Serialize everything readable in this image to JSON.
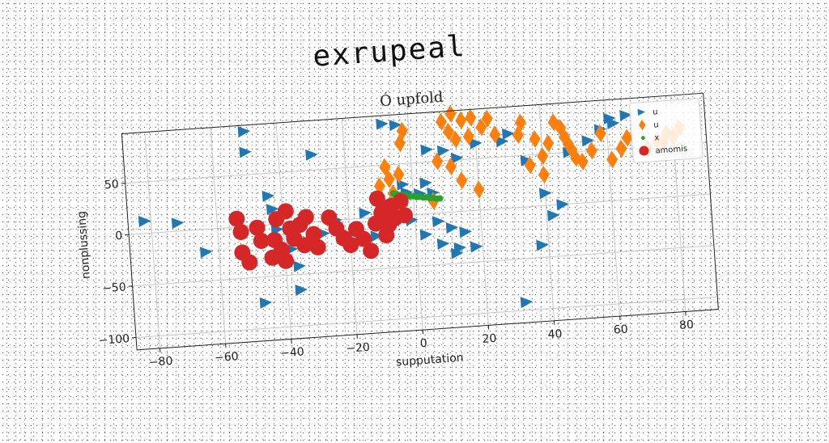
{
  "header": {
    "title": "exrupeal"
  },
  "chart_data": {
    "type": "scatter",
    "title": "Ó upfold",
    "xlabel": "supputation",
    "ylabel": "nonplussing",
    "xlim": [
      -87,
      90
    ],
    "ylim": [
      -112,
      98
    ],
    "xticks": [
      -80,
      -60,
      -40,
      -20,
      0,
      20,
      40,
      60,
      80
    ],
    "yticks": [
      50,
      0,
      -50,
      -100
    ],
    "grid": true,
    "legend_position": "top-right",
    "series": [
      {
        "name": "u",
        "marker": "triangle-right",
        "color": "#1f77b4",
        "points": [
          [
            -82,
            12
          ],
          [
            -72,
            8
          ],
          [
            -64,
            -22
          ],
          [
            -50,
            92
          ],
          [
            -50,
            72
          ],
          [
            -47,
            -75
          ],
          [
            -44,
            28
          ],
          [
            -43,
            15
          ],
          [
            -42,
            -5
          ],
          [
            -38,
            -25
          ],
          [
            -36,
            -42
          ],
          [
            -36,
            -65
          ],
          [
            -30,
            65
          ],
          [
            -28,
            -12
          ],
          [
            -24,
            0
          ],
          [
            -18,
            -12
          ],
          [
            -15,
            5
          ],
          [
            -12,
            -18
          ],
          [
            -10,
            10
          ],
          [
            -8,
            90
          ],
          [
            -4,
            88
          ],
          [
            -3,
            30
          ],
          [
            -2,
            22
          ],
          [
            -1,
            -5
          ],
          [
            2,
            20
          ],
          [
            3,
            -20
          ],
          [
            4,
            30
          ],
          [
            5,
            62
          ],
          [
            6,
            20
          ],
          [
            7,
            -8
          ],
          [
            8,
            -30
          ],
          [
            10,
            60
          ],
          [
            11,
            -15
          ],
          [
            12,
            -40
          ],
          [
            13,
            -35
          ],
          [
            14,
            52
          ],
          [
            15,
            -20
          ],
          [
            18,
            -35
          ],
          [
            20,
            65
          ],
          [
            28,
            65
          ],
          [
            30,
            72
          ],
          [
            32,
            -92
          ],
          [
            35,
            45
          ],
          [
            38,
            -38
          ],
          [
            40,
            12
          ],
          [
            42,
            -10
          ],
          [
            45,
            0
          ],
          [
            48,
            50
          ],
          [
            54,
            60
          ],
          [
            58,
            70
          ],
          [
            61,
            80
          ],
          [
            62,
            75
          ],
          [
            66,
            82
          ]
        ]
      },
      {
        "name": "u",
        "marker": "diamond",
        "color": "#ff7f0e",
        "points": [
          [
            -8,
            48
          ],
          [
            -7,
            36
          ],
          [
            -6,
            22
          ],
          [
            -5,
            8
          ],
          [
            -4,
            40
          ],
          [
            -3,
            70
          ],
          [
            -2,
            82
          ],
          [
            10,
            88
          ],
          [
            12,
            78
          ],
          [
            13,
            95
          ],
          [
            14,
            70
          ],
          [
            16,
            88
          ],
          [
            18,
            72
          ],
          [
            19,
            90
          ],
          [
            22,
            80
          ],
          [
            24,
            88
          ],
          [
            26,
            72
          ],
          [
            33,
            70
          ],
          [
            34,
            82
          ],
          [
            36,
            40
          ],
          [
            38,
            65
          ],
          [
            40,
            48
          ],
          [
            42,
            60
          ],
          [
            44,
            80
          ],
          [
            46,
            74
          ],
          [
            47,
            65
          ],
          [
            48,
            58
          ],
          [
            49,
            52
          ],
          [
            50,
            44
          ],
          [
            52,
            40
          ],
          [
            55,
            50
          ],
          [
            58,
            66
          ],
          [
            61,
            40
          ],
          [
            64,
            50
          ],
          [
            66,
            60
          ],
          [
            72,
            48
          ],
          [
            75,
            55
          ],
          [
            77,
            54
          ],
          [
            78,
            62
          ],
          [
            80,
            58
          ],
          [
            82,
            66
          ],
          [
            15,
            30
          ],
          [
            12,
            44
          ],
          [
            20,
            20
          ],
          [
            6,
            12
          ],
          [
            -10,
            30
          ],
          [
            8,
            50
          ],
          [
            40,
            30
          ]
        ]
      },
      {
        "name": "x",
        "marker": "circle-small",
        "color": "#2ca02c",
        "points": [
          [
            -6,
            22
          ],
          [
            -5,
            21
          ],
          [
            -4,
            20
          ],
          [
            -3,
            20
          ],
          [
            -2,
            19
          ],
          [
            -1,
            18
          ],
          [
            0,
            18
          ],
          [
            1,
            17
          ],
          [
            2,
            17
          ],
          [
            3,
            16
          ],
          [
            4,
            16
          ],
          [
            5,
            15
          ],
          [
            6,
            15
          ],
          [
            7,
            14
          ],
          [
            8,
            14
          ]
        ]
      },
      {
        "name": "amomis",
        "marker": "circle",
        "color": "#d62728",
        "points": [
          [
            -54,
            8
          ],
          [
            -53,
            -5
          ],
          [
            -53,
            -25
          ],
          [
            -51,
            -35
          ],
          [
            -48,
            -2
          ],
          [
            -47,
            -15
          ],
          [
            -44,
            -32
          ],
          [
            -43,
            -15
          ],
          [
            -42,
            5
          ],
          [
            -41,
            -25
          ],
          [
            -40,
            -36
          ],
          [
            -39,
            12
          ],
          [
            -38,
            -5
          ],
          [
            -37,
            -15
          ],
          [
            -35,
            -2
          ],
          [
            -34,
            -22
          ],
          [
            -33,
            5
          ],
          [
            -31,
            -12
          ],
          [
            -30,
            -25
          ],
          [
            -26,
            3
          ],
          [
            -24,
            -8
          ],
          [
            -22,
            -18
          ],
          [
            -20,
            -25
          ],
          [
            -18,
            -10
          ],
          [
            -16,
            -20
          ],
          [
            -14,
            -32
          ],
          [
            -12,
            -6
          ],
          [
            -11,
            18
          ],
          [
            -10,
            4
          ],
          [
            -9,
            -18
          ],
          [
            -8,
            -8
          ],
          [
            -7,
            10
          ],
          [
            -6,
            -2
          ],
          [
            -4,
            14
          ],
          [
            -3,
            0
          ]
        ]
      }
    ]
  }
}
